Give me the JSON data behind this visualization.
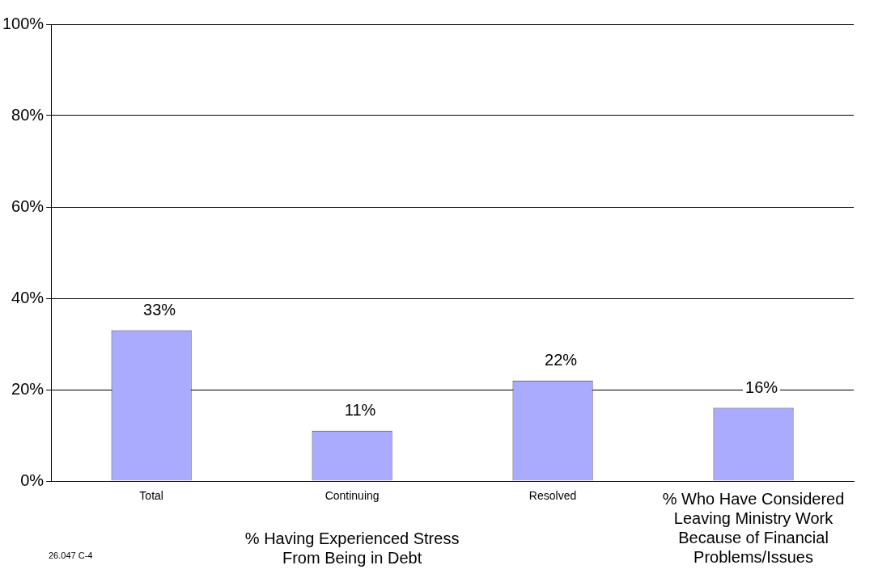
{
  "chart_data": {
    "type": "bar",
    "categories": [
      "Total",
      "Continuing",
      "Resolved",
      "% Who Have Considered Leaving Ministry Work Because of Financial Problems/Issues"
    ],
    "values": [
      33,
      11,
      22,
      16
    ],
    "value_labels": [
      "33%",
      "11%",
      "22%",
      "16%"
    ],
    "color": "#aaaaff",
    "xlabel": "% Having Experienced Stress From Being in Debt",
    "annotations": [
      "26.047 C-4"
    ],
    "ylim": [
      0,
      100
    ],
    "yticks": [
      {
        "value": 0,
        "label": "0%"
      },
      {
        "value": 20,
        "label": "20%"
      },
      {
        "value": 40,
        "label": "40%"
      },
      {
        "value": 60,
        "label": "60%"
      },
      {
        "value": 80,
        "label": "80%"
      },
      {
        "value": 100,
        "label": "100%"
      }
    ],
    "grid": "y",
    "legend": false
  }
}
